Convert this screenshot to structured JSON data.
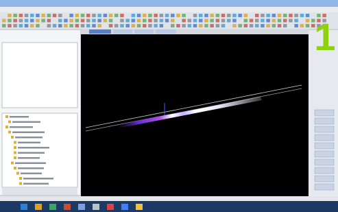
{
  "overlay": {
    "number": "1"
  }
}
